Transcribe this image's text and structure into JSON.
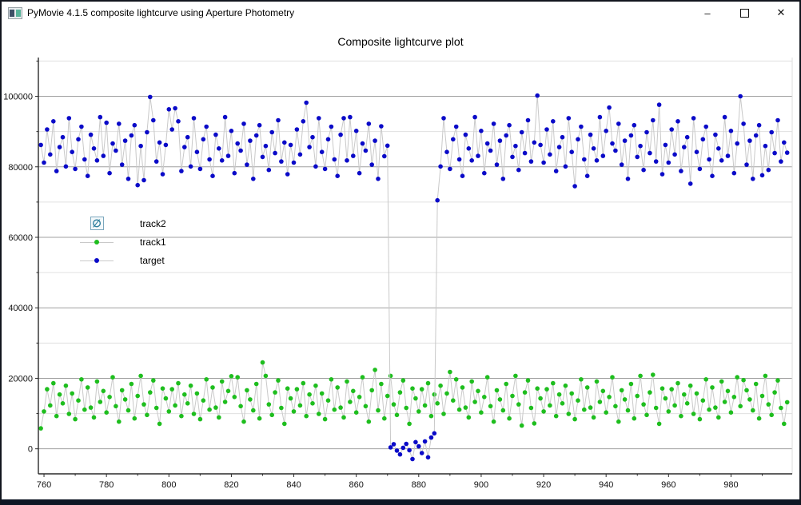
{
  "window": {
    "title": "PyMovie 4.1.5 composite lightcurve using Aperture Photometry",
    "controls": {
      "minimize_glyph": "–",
      "close_glyph": "✕"
    }
  },
  "plot": {
    "title": "Composite lightcurve plot"
  },
  "legend": {
    "items": [
      {
        "label": "track2",
        "marker": "hidden-eye-icon",
        "glyph": "∅",
        "color": "#2e7f9e"
      },
      {
        "label": "track1",
        "marker": "dot",
        "color": "#1ebe1e"
      },
      {
        "label": "target",
        "marker": "dot",
        "color": "#0a0ac8"
      }
    ]
  },
  "chart_data": {
    "type": "scatter",
    "title": "Composite lightcurve plot",
    "xlabel": "",
    "ylabel": "",
    "xlim": [
      758.2,
      999.6
    ],
    "ylim": [
      -7100,
      111000
    ],
    "x_ticks": [
      760,
      780,
      800,
      820,
      840,
      860,
      880,
      900,
      920,
      940,
      960,
      980
    ],
    "x_minor_ticks": [
      770,
      790,
      810,
      830,
      850,
      870,
      890,
      910,
      930,
      950,
      970,
      990
    ],
    "y_ticks": [
      0,
      20000,
      40000,
      60000,
      80000,
      100000
    ],
    "y_minor_ticks": [
      10000,
      30000,
      50000,
      70000,
      90000,
      110000
    ],
    "grid": "horizontal only, major medium gray, minor light gray",
    "legend_position": "left-middle",
    "connector_line_color": "#c9c9c9",
    "x_start": 759,
    "x_step": 1,
    "series": [
      {
        "name": "target",
        "color": "#0a0ac8",
        "values": [
          86200,
          81200,
          90600,
          83500,
          92900,
          78800,
          85600,
          88400,
          80100,
          93800,
          84200,
          79400,
          87800,
          91400,
          82100,
          77400,
          89100,
          85200,
          81800,
          94100,
          83100,
          92500,
          78200,
          86600,
          84600,
          92200,
          80600,
          87400,
          76600,
          88900,
          91800,
          74800,
          85900,
          76200,
          89800,
          99800,
          93200,
          81500,
          86900,
          77900,
          86200,
          96300,
          90600,
          96600,
          92900,
          78800,
          85600,
          88400,
          80100,
          93800,
          84200,
          79400,
          87800,
          91400,
          82100,
          77400,
          89100,
          85200,
          81800,
          94100,
          83100,
          90200,
          78200,
          86600,
          84600,
          92200,
          80600,
          87400,
          76600,
          88900,
          91800,
          82800,
          85900,
          79100,
          89800,
          83900,
          93200,
          81500,
          86900,
          77900,
          86200,
          81200,
          90600,
          83500,
          92900,
          98200,
          85600,
          88400,
          80100,
          93800,
          84200,
          79400,
          87800,
          91400,
          82100,
          77400,
          89100,
          93800,
          81800,
          94100,
          83100,
          90200,
          78200,
          86600,
          84600,
          92200,
          80600,
          87400,
          76600,
          91500,
          83000,
          86000,
          400,
          1300,
          -500,
          -1600,
          300,
          1400,
          -400,
          -2900,
          1900,
          700,
          -1200,
          2100,
          -2400,
          3200,
          4400,
          70500,
          80100,
          93800,
          84200,
          79400,
          87800,
          91400,
          82100,
          77400,
          89100,
          85200,
          81800,
          94100,
          83100,
          90200,
          78200,
          86600,
          84600,
          92200,
          80600,
          87400,
          76600,
          88900,
          91800,
          82800,
          85900,
          79100,
          89800,
          83900,
          93200,
          81500,
          86900,
          100200,
          86200,
          81200,
          90600,
          83500,
          92900,
          78800,
          85600,
          88400,
          80100,
          93800,
          84200,
          74500,
          87800,
          91400,
          82100,
          77400,
          89100,
          85200,
          81800,
          94100,
          83100,
          90200,
          96800,
          86600,
          84600,
          92200,
          80600,
          87400,
          76600,
          88900,
          91800,
          82800,
          85900,
          79100,
          89800,
          83900,
          93200,
          81500,
          97600,
          77900,
          86200,
          81200,
          90600,
          83500,
          92900,
          78800,
          85600,
          88400,
          75200,
          93800,
          84200,
          79400,
          87800,
          91400,
          82100,
          77400,
          89100,
          85200,
          81800,
          94100,
          83100,
          90200,
          78200,
          86600,
          100000,
          92200,
          80600,
          87400,
          76600,
          88900,
          91800,
          77600,
          85900,
          79100,
          89800,
          83900,
          93200,
          81500,
          86900,
          84000
        ]
      },
      {
        "name": "track1",
        "color": "#1ebe1e",
        "values": [
          5800,
          10600,
          16900,
          12300,
          18600,
          9300,
          15400,
          12900,
          17900,
          9900,
          15700,
          8400,
          13700,
          19700,
          11100,
          17400,
          11700,
          8900,
          19100,
          13300,
          16400,
          10300,
          14700,
          20300,
          12100,
          7700,
          16600,
          14000,
          10900,
          18400,
          8600,
          15000,
          20700,
          12600,
          9600,
          16000,
          19400,
          11600,
          7100,
          17100,
          14300,
          10600,
          16900,
          12300,
          18600,
          9300,
          15400,
          12900,
          17900,
          9900,
          15700,
          8400,
          13700,
          19700,
          11100,
          17400,
          11700,
          8900,
          19100,
          13300,
          16400,
          20600,
          14700,
          20300,
          12100,
          7700,
          16600,
          14000,
          10900,
          18400,
          8600,
          24500,
          20700,
          12600,
          9600,
          16000,
          19400,
          11600,
          7100,
          17100,
          14300,
          10600,
          16900,
          12300,
          18600,
          9300,
          15400,
          12900,
          17900,
          9900,
          15700,
          8400,
          13700,
          19700,
          11100,
          17400,
          11700,
          8900,
          19100,
          13300,
          16400,
          10300,
          14700,
          20300,
          12100,
          7700,
          16600,
          22400,
          10900,
          18400,
          8600,
          15000,
          20700,
          12600,
          9600,
          16000,
          19400,
          11600,
          7100,
          17100,
          14300,
          10600,
          16900,
          12300,
          18600,
          9300,
          15400,
          12900,
          17900,
          9900,
          15700,
          21800,
          13700,
          19700,
          11100,
          17400,
          11700,
          8900,
          19100,
          13300,
          16400,
          10300,
          14700,
          20300,
          12100,
          7700,
          16600,
          14000,
          10900,
          18400,
          8600,
          15000,
          20700,
          12600,
          6600,
          16000,
          19400,
          11600,
          7200,
          17100,
          14300,
          10600,
          16900,
          12300,
          18600,
          9300,
          15400,
          12900,
          17900,
          9900,
          15700,
          8400,
          13700,
          19700,
          11100,
          17400,
          11700,
          8900,
          19100,
          13300,
          16400,
          10300,
          14700,
          20300,
          12100,
          7700,
          16600,
          14000,
          10900,
          18400,
          8600,
          15000,
          20700,
          12600,
          9600,
          16000,
          21000,
          11600,
          7100,
          17100,
          14300,
          10600,
          16900,
          12300,
          18600,
          9300,
          15400,
          12900,
          17900,
          9900,
          15700,
          8400,
          13700,
          19700,
          11100,
          17400,
          11700,
          8900,
          19100,
          13300,
          16400,
          10300,
          14700,
          20300,
          12100,
          19500,
          16600,
          14000,
          10900,
          18400,
          8600,
          15000,
          20700,
          12600,
          9600,
          16000,
          19400,
          11600,
          7100,
          13200
        ]
      }
    ]
  }
}
